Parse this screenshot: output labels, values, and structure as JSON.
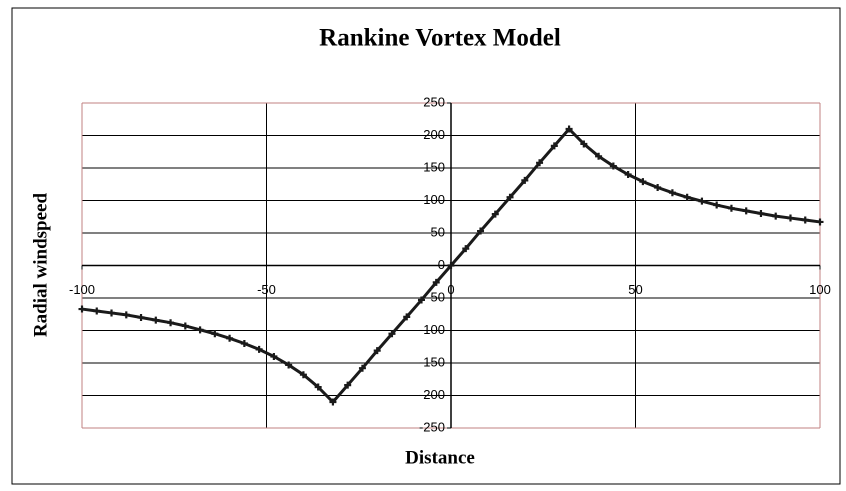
{
  "chart_data": {
    "type": "line",
    "title": "Rankine Vortex Model",
    "x_label": "Distance",
    "y_label": "Radial windspeed",
    "x": [
      -100,
      -96,
      -92,
      -88,
      -84,
      -80,
      -76,
      -72,
      -68,
      -64,
      -60,
      -56,
      -52,
      -48,
      -44,
      -40,
      -36,
      -32,
      -28,
      -24,
      -20,
      -16,
      -12,
      -8,
      -4,
      0,
      4,
      8,
      12,
      16,
      20,
      24,
      28,
      32,
      36,
      40,
      44,
      48,
      52,
      56,
      60,
      64,
      68,
      72,
      76,
      80,
      84,
      88,
      92,
      96,
      100
    ],
    "series": [
      {
        "name": "Radial windspeed",
        "color": "#1a1a1a",
        "values": [
          -67,
          -70,
          -73,
          -76,
          -80,
          -84,
          -88,
          -93,
          -99,
          -105,
          -112,
          -120,
          -129,
          -140,
          -153,
          -168,
          -187,
          -210,
          -184,
          -158,
          -131,
          -105,
          -79,
          -53,
          -26,
          0,
          26,
          53,
          79,
          105,
          131,
          158,
          184,
          210,
          187,
          168,
          153,
          140,
          129,
          120,
          112,
          105,
          99,
          93,
          88,
          84,
          80,
          76,
          73,
          70,
          67
        ]
      }
    ],
    "xlim": [
      -100,
      100
    ],
    "xticks": [
      -100,
      -50,
      0,
      50,
      100
    ],
    "ylim": [
      -250,
      250
    ],
    "yticks": [
      -250,
      -200,
      -150,
      -100,
      -50,
      0,
      50,
      100,
      150,
      200,
      250
    ],
    "grid": true
  }
}
